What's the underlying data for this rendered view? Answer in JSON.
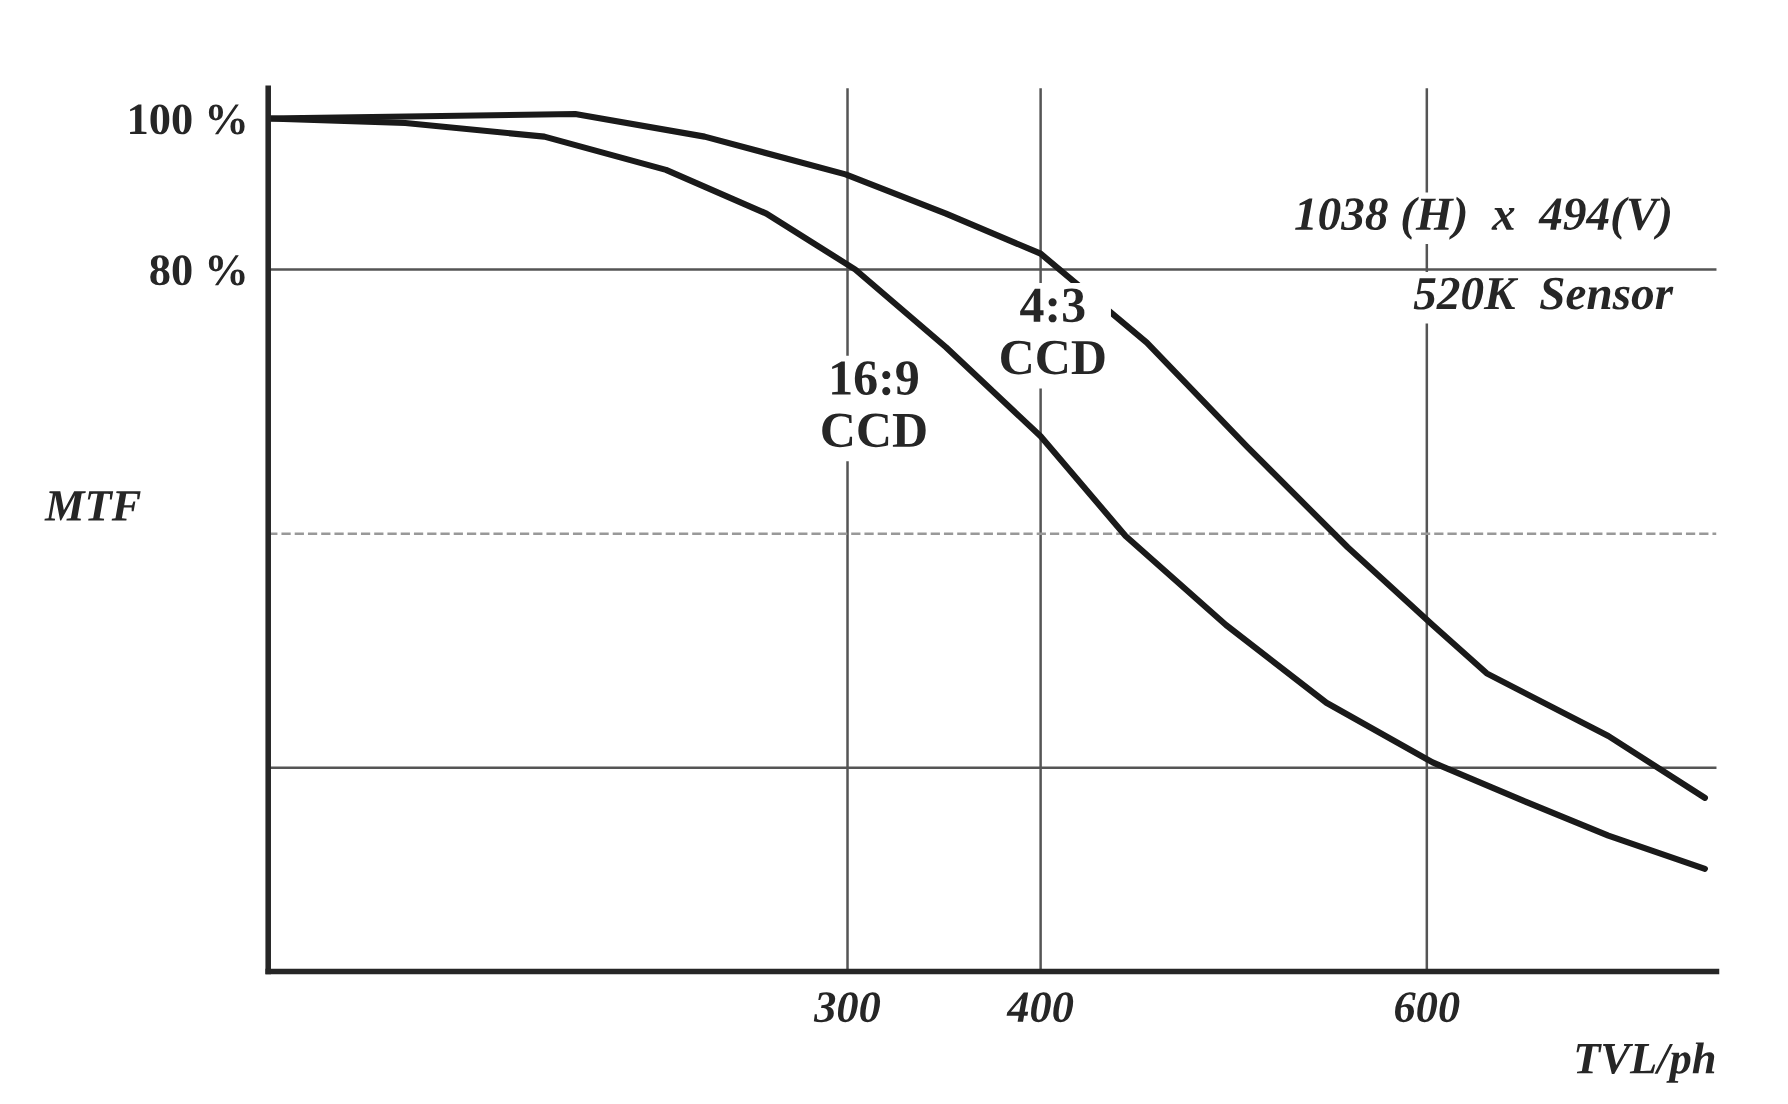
{
  "chart_data": {
    "type": "line",
    "xlabel": "TVL/ph",
    "ylabel": "MTF",
    "xlim": [
      0,
      750
    ],
    "ylim": [
      -13,
      104
    ],
    "xticks": [
      300,
      400,
      600
    ],
    "yticks": [
      {
        "value": 100,
        "label": "100 %"
      },
      {
        "value": 80,
        "label": "80 %"
      }
    ],
    "grid": false,
    "legend": false,
    "marker": "none",
    "line_style": "solid",
    "series": [
      {
        "name": "4:3\nCCD",
        "color": "#1a1a1a",
        "x": [
          0,
          159,
          226,
          299,
          351,
          400,
          455,
          507,
          559,
          603,
          631,
          694,
          744
        ],
        "values": [
          100,
          100.6,
          97.6,
          92.6,
          87.4,
          82.1,
          70.3,
          56.5,
          43.2,
          32.9,
          26.5,
          18.2,
          10.0
        ]
      },
      {
        "name": "16:9\nCCD",
        "color": "#1a1a1a",
        "x": [
          0,
          71,
          143,
          206,
          258,
          304,
          351,
          400,
          444,
          496,
          548,
          603,
          652,
          694,
          744
        ],
        "values": [
          100,
          99.4,
          97.6,
          93.2,
          87.4,
          80,
          69.7,
          57.9,
          44.7,
          32.9,
          22.6,
          14.7,
          9.4,
          5.0,
          0.6
        ]
      }
    ],
    "ref_lines": [
      {
        "axis": "x",
        "value": 300,
        "color": "#555555"
      },
      {
        "axis": "x",
        "value": 400,
        "color": "#555555"
      },
      {
        "axis": "x",
        "value": 600,
        "color": "#555555"
      },
      {
        "axis": "y",
        "value": 80,
        "color": "#555555"
      },
      {
        "axis": "y",
        "value": 45,
        "color": "#999999",
        "line_style": "dashed"
      },
      {
        "axis": "y",
        "value": 14,
        "color": "#555555"
      }
    ],
    "annotations": [
      "1038 (H)  x  494(V)",
      "520K  Sensor"
    ]
  }
}
